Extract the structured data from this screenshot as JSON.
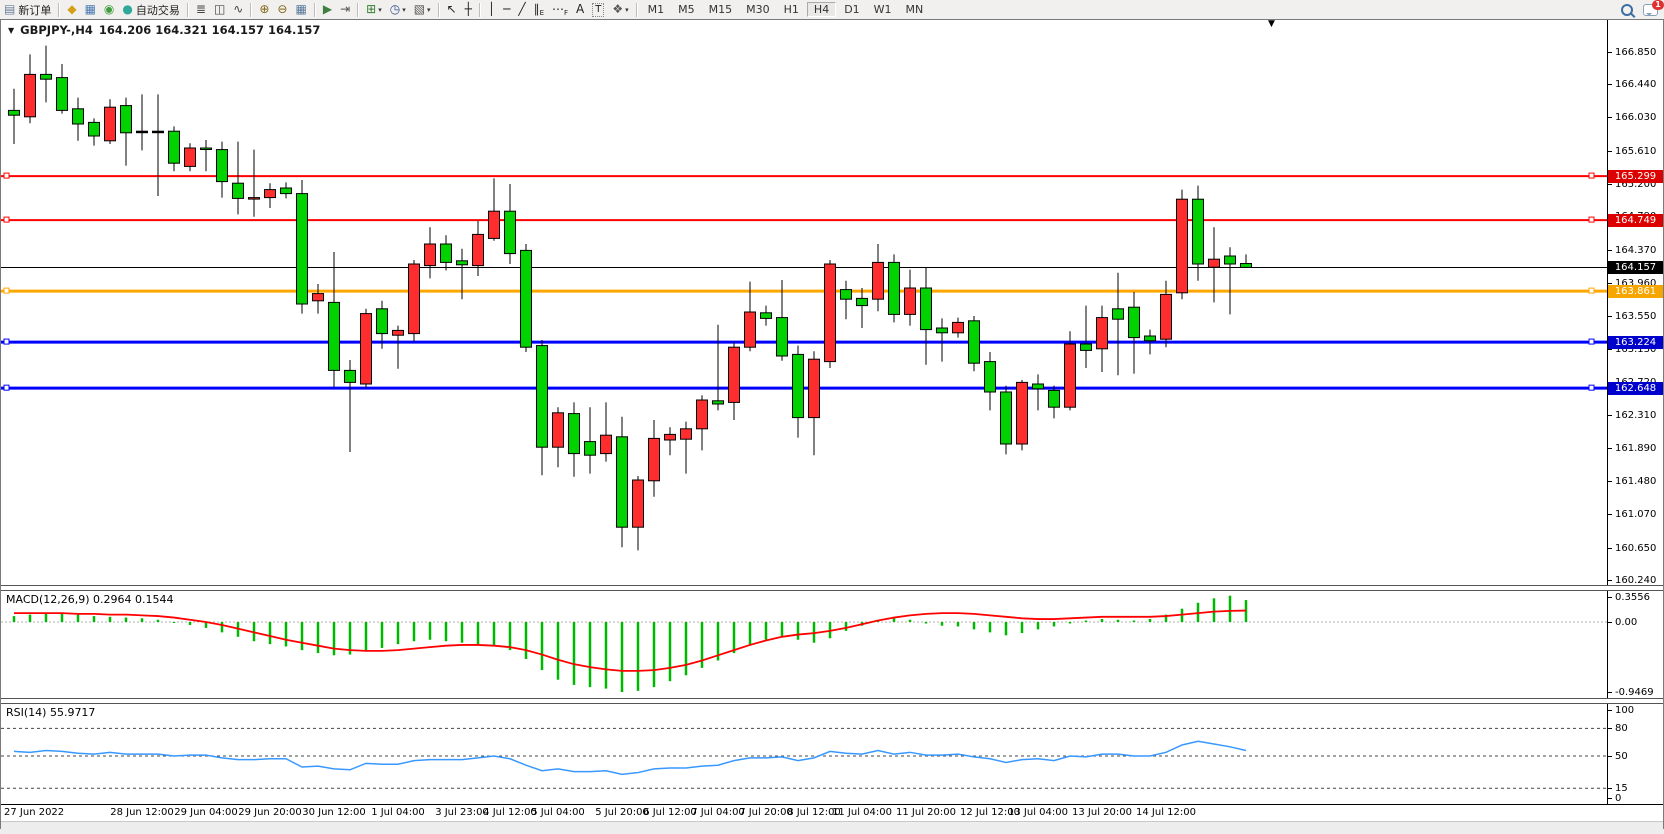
{
  "toolbar": {
    "new_order": {
      "label": "新订单",
      "glyph": "▤",
      "color": "#6b7f9a"
    },
    "autotrading": {
      "label": "自动交易",
      "glyph": "●",
      "color": "#2fa89a"
    },
    "icons_left": [
      {
        "name": "market-icon",
        "glyph": "◆",
        "color": "#d4a017"
      },
      {
        "name": "profiles-icon",
        "glyph": "▦",
        "color": "#4a7ab5"
      },
      {
        "name": "signals-icon",
        "glyph": "◉",
        "color": "#3f9d3f"
      }
    ],
    "icon_groups": [
      [
        {
          "name": "bar-chart-icon",
          "glyph": "≣",
          "color": "#444444"
        },
        {
          "name": "candlestick-chart-icon",
          "glyph": "◫",
          "color": "#444444"
        },
        {
          "name": "line-chart-icon",
          "glyph": "∿",
          "color": "#444444"
        }
      ],
      [
        {
          "name": "zoom-in-icon",
          "glyph": "⊕",
          "color": "#806515"
        },
        {
          "name": "zoom-out-icon",
          "glyph": "⊖",
          "color": "#806515"
        },
        {
          "name": "tile-windows-icon",
          "glyph": "▦",
          "color": "#557799"
        }
      ],
      [
        {
          "name": "auto-scroll-icon",
          "glyph": "▶",
          "color": "#3f7f3f"
        },
        {
          "name": "chart-shift-icon",
          "glyph": "⇥",
          "color": "#555555"
        }
      ],
      [
        {
          "name": "indicators-icon",
          "glyph": "⊞",
          "color": "#2f7f2f",
          "dropdown": true
        },
        {
          "name": "periods-icon",
          "glyph": "◷",
          "color": "#33508a",
          "dropdown": true
        },
        {
          "name": "templates-icon",
          "glyph": "▧",
          "color": "#555555",
          "dropdown": true
        }
      ],
      [
        {
          "name": "cursor-icon",
          "glyph": "↖",
          "color": "#222222"
        },
        {
          "name": "crosshair-icon",
          "glyph": "┼",
          "color": "#222222"
        }
      ],
      [
        {
          "name": "vertical-line-icon",
          "glyph": "│",
          "color": "#222222"
        },
        {
          "name": "horizontal-line-icon",
          "glyph": "─",
          "color": "#222222"
        },
        {
          "name": "trendline-icon",
          "glyph": "╱",
          "color": "#222222"
        },
        {
          "name": "equidistant-channel-icon",
          "glyph": "∥",
          "sub": "E",
          "color": "#222222"
        },
        {
          "name": "fibonacci-icon",
          "glyph": "⋯",
          "sub": "F",
          "color": "#222222"
        },
        {
          "name": "text-icon",
          "glyph": "A",
          "color": "#222222"
        },
        {
          "name": "text-label-icon",
          "glyph": "T",
          "color": "#222222",
          "boxed": true
        },
        {
          "name": "arrows-icon",
          "glyph": "❖",
          "color": "#555555",
          "dropdown": true
        }
      ]
    ],
    "timeframes": [
      "M1",
      "M5",
      "M15",
      "M30",
      "H1",
      "H4",
      "D1",
      "W1",
      "MN"
    ],
    "active_timeframe": "H4",
    "notification_count": "1"
  },
  "chart": {
    "title": {
      "menu_glyph": "▼",
      "symbol_period": "GBPJPY-,H4",
      "ohlc": "164.206 164.321 164.157 164.157"
    },
    "price_scale_ticks": [
      "166.850",
      "166.440",
      "166.030",
      "165.610",
      "165.200",
      "164.790",
      "164.370",
      "163.960",
      "163.550",
      "163.130",
      "162.720",
      "162.310",
      "161.890",
      "161.480",
      "161.070",
      "160.650",
      "160.240"
    ],
    "badges": [
      {
        "value": "165.299",
        "bg": "#dd0000"
      },
      {
        "value": "164.749",
        "bg": "#dd0000"
      },
      {
        "value": "164.157",
        "bg": "#000000"
      },
      {
        "value": "163.861",
        "bg": "#f7a600"
      },
      {
        "value": "163.224",
        "bg": "#0000cc"
      },
      {
        "value": "162.648",
        "bg": "#0000cc"
      }
    ],
    "hlines": [
      {
        "price": 165.299,
        "color": "#ff0000",
        "w": 2
      },
      {
        "price": 164.749,
        "color": "#ff0000",
        "w": 2
      },
      {
        "price": 163.861,
        "color": "#ffa600",
        "w": 3
      },
      {
        "price": 163.224,
        "color": "#0000ff",
        "w": 3
      },
      {
        "price": 162.648,
        "color": "#0000ff",
        "w": 3
      }
    ],
    "current_price_line": {
      "price": 164.157,
      "color": "#000000",
      "w": 1
    },
    "colors": {
      "up": "#ff2d2d",
      "down": "#00d200",
      "wick": "#000000",
      "outline": "#000000"
    }
  },
  "chart_data": {
    "type": "candlestick",
    "symbol": "GBPJPY-",
    "period": "H4",
    "price_range": [
      160.19,
      167.25
    ],
    "candles": {
      "o": [
        166.12,
        166.04,
        166.57,
        166.53,
        166.14,
        165.97,
        165.74,
        166.18,
        165.86,
        165.86,
        165.86,
        165.42,
        165.65,
        165.63,
        165.21,
        165.02,
        165.03,
        165.15,
        165.08,
        163.74,
        163.72,
        162.87,
        162.7,
        163.64,
        163.31,
        163.33,
        164.18,
        164.45,
        164.24,
        164.18,
        164.52,
        164.86,
        164.37,
        163.18,
        161.91,
        162.33,
        161.98,
        161.83,
        162.04,
        160.91,
        161.49,
        162.0,
        162.01,
        162.14,
        162.49,
        162.47,
        163.16,
        163.59,
        163.53,
        163.07,
        162.28,
        162.98,
        163.88,
        163.77,
        163.76,
        164.22,
        163.57,
        163.9,
        163.4,
        163.34,
        163.49,
        162.98,
        162.6,
        161.95,
        162.7,
        162.62,
        162.41,
        163.2,
        163.14,
        163.64,
        163.66,
        163.3,
        163.26,
        163.84,
        165.01,
        164.16,
        164.3,
        164.206
      ],
      "h": [
        166.39,
        166.82,
        166.93,
        166.7,
        166.28,
        166.02,
        166.26,
        166.28,
        166.32,
        166.32,
        165.92,
        165.71,
        165.75,
        165.73,
        165.73,
        165.63,
        165.21,
        165.22,
        165.25,
        163.95,
        164.35,
        163.0,
        163.64,
        163.74,
        163.43,
        164.25,
        164.66,
        164.56,
        164.39,
        164.74,
        165.27,
        165.2,
        164.45,
        163.25,
        162.41,
        162.47,
        162.41,
        162.47,
        162.29,
        161.55,
        162.25,
        162.16,
        162.23,
        162.56,
        163.44,
        163.22,
        163.98,
        163.68,
        164.0,
        163.18,
        163.11,
        164.25,
        163.99,
        163.9,
        164.45,
        164.32,
        164.13,
        164.15,
        163.52,
        163.53,
        163.55,
        163.1,
        162.68,
        162.75,
        162.82,
        162.68,
        163.36,
        163.68,
        163.68,
        164.09,
        163.85,
        163.38,
        163.99,
        165.13,
        165.18,
        164.66,
        164.41,
        164.321
      ],
      "l": [
        165.7,
        165.96,
        166.22,
        166.08,
        165.74,
        165.68,
        165.7,
        165.43,
        165.62,
        165.05,
        165.36,
        165.36,
        165.36,
        165.03,
        164.82,
        164.79,
        164.9,
        165.02,
        163.58,
        163.58,
        162.66,
        161.85,
        162.65,
        163.14,
        162.89,
        163.23,
        164.02,
        164.12,
        163.76,
        164.05,
        164.49,
        164.2,
        163.1,
        161.56,
        161.66,
        161.54,
        161.58,
        161.73,
        160.66,
        160.62,
        161.29,
        161.81,
        161.58,
        161.87,
        162.37,
        162.25,
        163.11,
        163.43,
        162.99,
        162.03,
        161.81,
        162.9,
        163.51,
        163.4,
        163.61,
        163.47,
        163.43,
        162.94,
        162.98,
        163.28,
        162.86,
        162.37,
        161.82,
        161.87,
        162.37,
        162.27,
        162.37,
        162.9,
        162.85,
        162.81,
        162.83,
        163.07,
        163.16,
        163.76,
        163.99,
        163.72,
        163.57,
        164.157
      ],
      "c": [
        166.06,
        166.57,
        166.51,
        166.12,
        165.95,
        165.8,
        166.16,
        165.84,
        165.86,
        165.86,
        165.46,
        165.65,
        165.64,
        165.23,
        165.02,
        165.03,
        165.13,
        165.08,
        163.7,
        163.83,
        162.87,
        162.72,
        163.58,
        163.33,
        163.37,
        164.2,
        164.45,
        164.22,
        164.19,
        164.57,
        164.86,
        164.33,
        163.16,
        161.91,
        162.34,
        161.83,
        161.81,
        162.06,
        160.91,
        161.5,
        162.02,
        162.07,
        162.14,
        162.5,
        162.45,
        163.16,
        163.6,
        163.52,
        163.05,
        162.28,
        163.01,
        164.2,
        163.76,
        163.68,
        164.22,
        163.57,
        163.9,
        163.38,
        163.34,
        163.47,
        162.96,
        162.6,
        161.95,
        162.72,
        162.64,
        162.41,
        163.2,
        163.12,
        163.53,
        163.51,
        163.28,
        163.24,
        163.82,
        165.01,
        164.2,
        164.26,
        164.2,
        164.157
      ]
    },
    "time_labels": [
      {
        "t": "27 Jun 2022",
        "bar": 0
      },
      {
        "t": "28 Jun 12:00",
        "bar": 8
      },
      {
        "t": "29 Jun 04:00",
        "bar": 12
      },
      {
        "t": "29 Jun 20:00",
        "bar": 16
      },
      {
        "t": "30 Jun 12:00",
        "bar": 20
      },
      {
        "t": "1 Jul 04:00",
        "bar": 24
      },
      {
        "t": "3 Jul 23:00",
        "bar": 28
      },
      {
        "t": "4 Jul 12:00",
        "bar": 31
      },
      {
        "t": "5 Jul 04:00",
        "bar": 34
      },
      {
        "t": "5 Jul 20:00",
        "bar": 38
      },
      {
        "t": "6 Jul 12:00",
        "bar": 41
      },
      {
        "t": "7 Jul 04:00",
        "bar": 44
      },
      {
        "t": "7 Jul 20:00",
        "bar": 47
      },
      {
        "t": "8 Jul 12:00",
        "bar": 50
      },
      {
        "t": "11 Jul 04:00",
        "bar": 53
      },
      {
        "t": "11 Jul 20:00",
        "bar": 57
      },
      {
        "t": "12 Jul 12:00",
        "bar": 61
      },
      {
        "t": "13 Jul 04:00",
        "bar": 64
      },
      {
        "t": "13 Jul 20:00",
        "bar": 68
      },
      {
        "t": "14 Jul 12:00",
        "bar": 72
      }
    ]
  },
  "macd": {
    "label": "MACD(12,26,9) 0.2964 0.1544",
    "scale_labels": [
      {
        "v": 0.3556,
        "text": "0.3556"
      },
      {
        "v": 0.0,
        "text": "0.00"
      },
      {
        "v": -0.9469,
        "text": "-0.9469"
      }
    ],
    "hist_color": "#00b800",
    "signal_color": "#ff0000",
    "hist": [
      0.08,
      0.1,
      0.12,
      0.11,
      0.1,
      0.08,
      0.07,
      0.06,
      0.05,
      0.03,
      0.0,
      -0.04,
      -0.08,
      -0.14,
      -0.2,
      -0.26,
      -0.3,
      -0.33,
      -0.38,
      -0.42,
      -0.45,
      -0.44,
      -0.4,
      -0.35,
      -0.3,
      -0.26,
      -0.24,
      -0.26,
      -0.28,
      -0.3,
      -0.33,
      -0.38,
      -0.5,
      -0.65,
      -0.78,
      -0.85,
      -0.88,
      -0.9,
      -0.9469,
      -0.93,
      -0.88,
      -0.8,
      -0.72,
      -0.62,
      -0.52,
      -0.42,
      -0.32,
      -0.24,
      -0.2,
      -0.24,
      -0.28,
      -0.22,
      -0.12,
      -0.05,
      0.02,
      0.05,
      0.03,
      -0.02,
      -0.05,
      -0.06,
      -0.1,
      -0.14,
      -0.18,
      -0.15,
      -0.1,
      -0.06,
      -0.02,
      0.02,
      0.04,
      0.03,
      0.02,
      0.04,
      0.1,
      0.18,
      0.26,
      0.32,
      0.3556,
      0.2964
    ],
    "signal": [
      0.12,
      0.12,
      0.12,
      0.12,
      0.11,
      0.11,
      0.1,
      0.1,
      0.09,
      0.08,
      0.06,
      0.03,
      0.0,
      -0.04,
      -0.09,
      -0.14,
      -0.19,
      -0.24,
      -0.28,
      -0.32,
      -0.36,
      -0.38,
      -0.39,
      -0.39,
      -0.38,
      -0.36,
      -0.34,
      -0.32,
      -0.31,
      -0.31,
      -0.32,
      -0.34,
      -0.38,
      -0.44,
      -0.51,
      -0.57,
      -0.61,
      -0.64,
      -0.66,
      -0.66,
      -0.65,
      -0.62,
      -0.58,
      -0.52,
      -0.45,
      -0.38,
      -0.31,
      -0.25,
      -0.2,
      -0.17,
      -0.15,
      -0.12,
      -0.08,
      -0.03,
      0.02,
      0.06,
      0.09,
      0.11,
      0.12,
      0.12,
      0.11,
      0.09,
      0.07,
      0.05,
      0.04,
      0.04,
      0.05,
      0.06,
      0.07,
      0.07,
      0.07,
      0.07,
      0.08,
      0.1,
      0.12,
      0.14,
      0.15,
      0.1544
    ]
  },
  "rsi": {
    "label": "RSI(14) 55.9717",
    "line_color": "#3898ff",
    "levels": [
      80,
      50,
      15
    ],
    "scale_labels": [
      {
        "v": 100,
        "text": "100"
      },
      {
        "v": 80,
        "text": "80"
      },
      {
        "v": 50,
        "text": "50"
      },
      {
        "v": 15,
        "text": "15"
      },
      {
        "v": 0,
        "text": "0"
      }
    ],
    "values": [
      55,
      54,
      56,
      55,
      53,
      52,
      54,
      52,
      52,
      52,
      50,
      51,
      51,
      48,
      46,
      46,
      47,
      47,
      38,
      39,
      36,
      35,
      42,
      41,
      41,
      45,
      46,
      46,
      46,
      48,
      50,
      47,
      40,
      34,
      36,
      33,
      33,
      34,
      30,
      32,
      36,
      37,
      37,
      39,
      40,
      45,
      48,
      48,
      49,
      45,
      48,
      55,
      53,
      52,
      56,
      52,
      54,
      51,
      51,
      52,
      49,
      47,
      43,
      46,
      47,
      45,
      50,
      49,
      52,
      52,
      50,
      50,
      54,
      62,
      66,
      63,
      60,
      55.97
    ]
  }
}
